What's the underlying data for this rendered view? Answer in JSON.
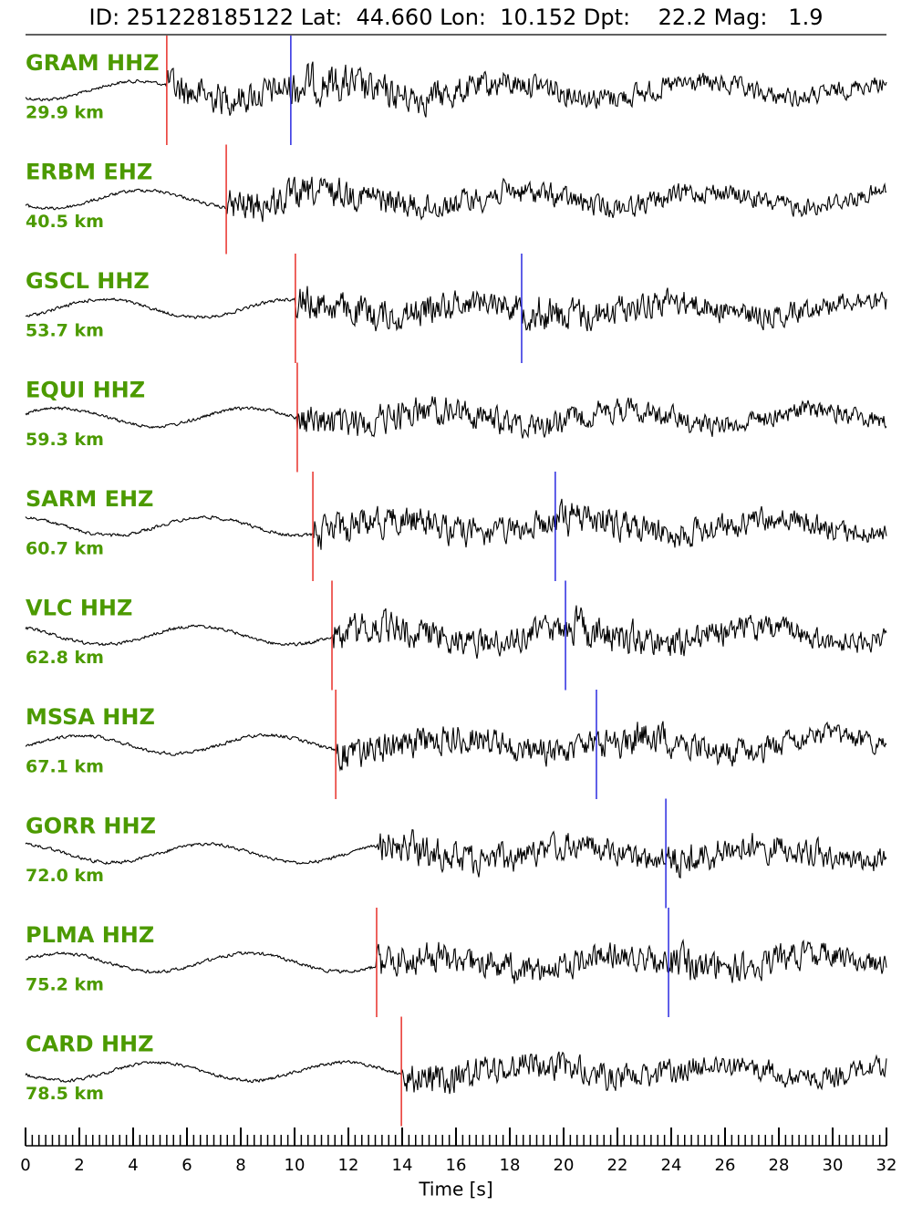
{
  "chart_data": {
    "type": "seismogram",
    "title": "ID: 251228185122 Lat:  44.660 Lon:  10.152 Dpt:    22.2 Mag:   1.9",
    "xlabel": "Time [s]",
    "xlim": [
      0,
      32
    ],
    "xticks": [
      0,
      2,
      4,
      6,
      8,
      10,
      12,
      14,
      16,
      18,
      20,
      22,
      24,
      26,
      28,
      30,
      32
    ],
    "label_color": "#4c9a00",
    "p_color": "#e8302a",
    "s_color": "#2a2ae0",
    "trace_color": "#000000",
    "traces": [
      {
        "station": "GRAM HHZ",
        "distance": "29.9 km",
        "p_pick": 5.25,
        "s_pick": 9.86
      },
      {
        "station": "ERBM EHZ",
        "distance": "40.5 km",
        "p_pick": 7.46,
        "s_pick": null
      },
      {
        "station": "GSCL HHZ",
        "distance": "53.7 km",
        "p_pick": 10.03,
        "s_pick": 18.44
      },
      {
        "station": "EQUI HHZ",
        "distance": "59.3 km",
        "p_pick": 10.1,
        "s_pick": null
      },
      {
        "station": "SARM EHZ",
        "distance": "60.7 km",
        "p_pick": 10.68,
        "s_pick": 19.69
      },
      {
        "station": "VLC HHZ",
        "distance": "62.8 km",
        "p_pick": 11.39,
        "s_pick": 20.07
      },
      {
        "station": "MSSA HHZ",
        "distance": "67.1 km",
        "p_pick": 11.53,
        "s_pick": 21.22
      },
      {
        "station": "GORR HHZ",
        "distance": "72.0 km",
        "p_pick": null,
        "s_pick": 23.8
      },
      {
        "station": "PLMA HHZ",
        "distance": "75.2 km",
        "p_pick": 13.05,
        "s_pick": 23.9
      },
      {
        "station": "CARD HHZ",
        "distance": "78.5 km",
        "p_pick": 13.97,
        "s_pick": null
      }
    ]
  }
}
